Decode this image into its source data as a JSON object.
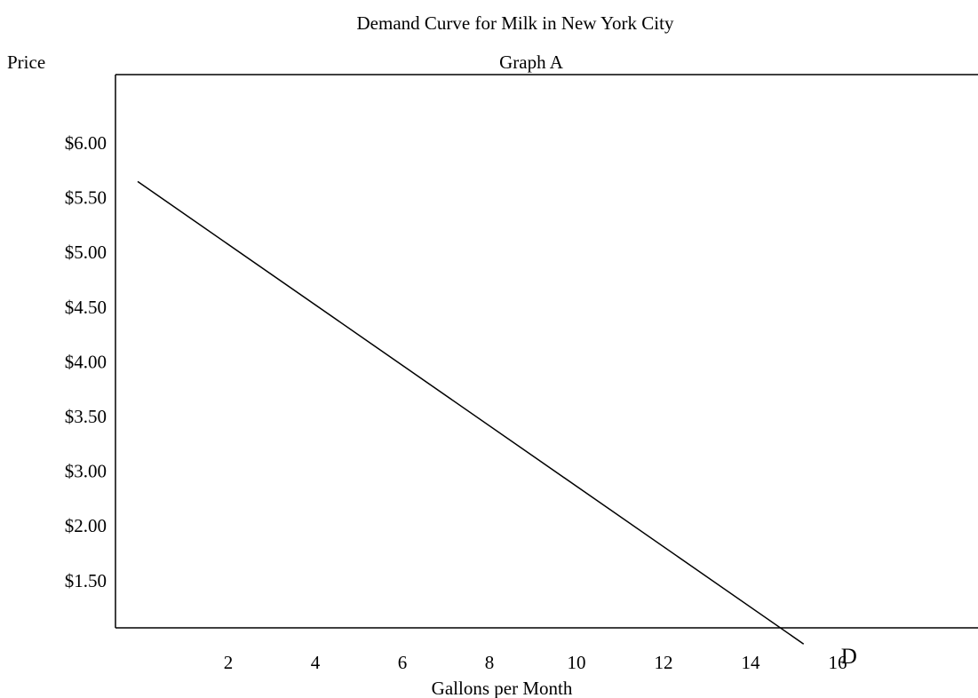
{
  "chart_data": {
    "type": "line",
    "title": "Demand Curve for Milk in New York City",
    "subtitle": "Graph A",
    "xlabel": "Gallons per Month",
    "ylabel": "Price",
    "x_ticks": [
      "2",
      "4",
      "6",
      "8",
      "10",
      "12",
      "14",
      "16"
    ],
    "y_ticks": [
      "$6.00",
      "$5.50",
      "$5.00",
      "$4.50",
      "$4.00",
      "$3.50",
      "$3.00",
      "$2.00",
      "$1.50"
    ],
    "grid": false,
    "series": [
      {
        "name": "D",
        "x": [
          0,
          15.3
        ],
        "y": [
          5.65,
          1.45
        ]
      }
    ]
  },
  "colors": {
    "line": "#000000",
    "text": "#000000",
    "background": "#ffffff"
  }
}
